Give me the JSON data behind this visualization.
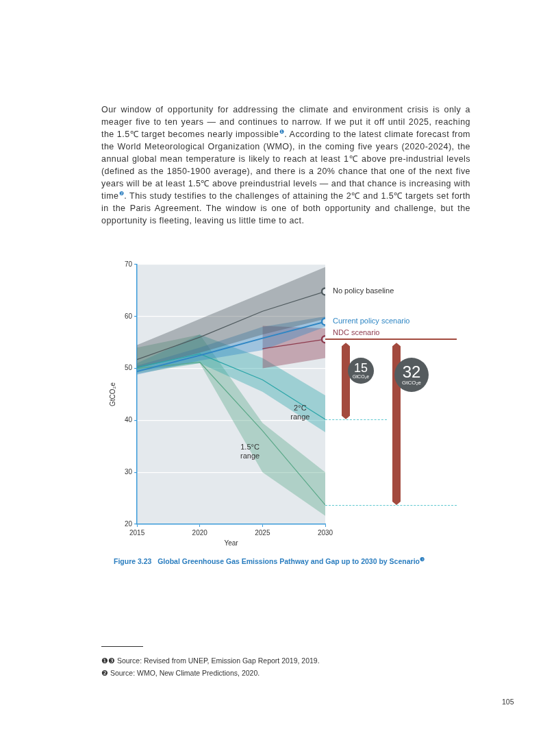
{
  "chart_data": {
    "type": "line",
    "title": "Figure 3.23   Global Greenhouse Gas Emissions Pathway and Gap up to 2030 by Scenario$^{❸}$",
    "xlabel": "Year",
    "ylabel": "GtCO₂e",
    "x": [
      2015,
      2020,
      2025,
      2030
    ],
    "xlim": [
      2015,
      2030
    ],
    "xticks": [
      2015,
      2020,
      2025,
      2030
    ],
    "ylim": [
      20,
      70
    ],
    "yticks": [
      20,
      30,
      40,
      50,
      60,
      70
    ],
    "grid": "y",
    "legend": false,
    "series": [
      {
        "name": "No policy baseline",
        "color": "#4f5a5e",
        "values": [
          51.7,
          56,
          61,
          64.8
        ],
        "lower": [
          50,
          53,
          56.5,
          59.5
        ],
        "upper": [
          54.5,
          59.5,
          64.5,
          69.5
        ]
      },
      {
        "name": "Current policy scenario",
        "color": "#2f86c4",
        "values": [
          49.4,
          52.5,
          55.8,
          59
        ],
        "lower": [
          48.8,
          51.5,
          53.5,
          58
        ],
        "upper": [
          50.5,
          54,
          58,
          60
        ]
      },
      {
        "name": "NDC scenario",
        "color": "#8e3b4e",
        "x": [
          2025,
          2030
        ],
        "values": [
          53.8,
          55.6
        ],
        "lower": [
          50,
          52
        ],
        "upper": [
          58.2,
          57.7
        ]
      },
      {
        "color": "#2aa5a8",
        "values": [
          50.2,
          52.8,
          47.8,
          40.2
        ],
        "lower": [
          49.5,
          51,
          45.5,
          37.7
        ],
        "upper": [
          51,
          56.5,
          52,
          44.8
        ]
      },
      {
        "color": "#5aa888",
        "values": [
          50,
          51.2,
          38,
          23.7
        ],
        "lower": [
          49,
          51,
          30,
          21.6
        ],
        "upper": [
          54,
          56.5,
          39.5,
          30
        ]
      }
    ],
    "annotations": [
      "Our window of opportunity for addressing the climate and environment crisis is only a meager five to ten years — and continues to narrow. If we put it off until 2025, reaching the 1.5℃ target becomes nearly impossible$^{❶}$. According to the latest climate forecast from the World Meteorological Organization (WMO), in the coming five years (2020-2024), the annual global mean temperature is likely to reach at least 1℃ above pre-industrial levels (defined as the 1850-1900 average), and there is a 20% chance that one of the next five years will be at least 1.5℃ above preindustrial levels — and that chance is increasing with time$^{❷}$. This study testifies to the challenges of attaining the 2℃ and 1.5℃ targets set forth in the Paris Agreement. The window is one of both opportunity and challenge, but the opportunity is fleeting, leaving us little time to act.",
      {
        "text": "2°C range",
        "x": 2028,
        "y": 41.5
      },
      {
        "text": "1.5°C range",
        "x": 2024,
        "y": 34
      },
      "15 GtCO₂e",
      "32 GtCO₂e",
      "❶❸ Source: Revised from UNEP, Emission Gap Report 2019, 2019.",
      "❷ Source: WMO, New Climate Predictions, 2020.",
      "105"
    ]
  }
}
